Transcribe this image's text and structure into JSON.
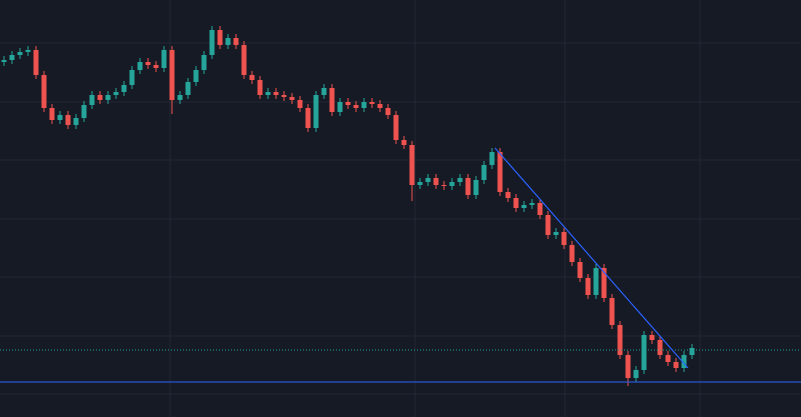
{
  "chart_data": {
    "type": "candlestick",
    "ylim": [
      0,
      417
    ],
    "grid": true,
    "up_color": "#26a69a",
    "down_color": "#ef5350",
    "open": [
      355,
      357,
      362,
      365,
      367,
      342,
      309,
      297,
      302,
      292,
      299,
      312,
      322,
      317,
      322,
      325,
      332,
      347,
      355,
      352,
      349,
      367,
      317,
      322,
      335,
      347,
      362,
      387,
      372,
      379,
      372,
      342,
      337,
      322,
      325,
      322,
      320,
      317,
      309,
      289,
      322,
      329,
      305,
      315,
      312,
      309,
      315,
      313,
      309,
      302,
      277,
      272,
      232,
      235,
      239,
      232,
      231,
      235,
      239,
      222,
      237,
      252,
      265,
      225,
      219,
      209,
      212,
      214,
      202,
      182,
      185,
      172,
      155,
      139,
      122,
      149,
      119,
      92,
      62,
      39,
      47,
      82,
      77,
      62,
      55,
      49,
      62
    ],
    "high": [
      361,
      366,
      369,
      371,
      371,
      346,
      313,
      306,
      306,
      303,
      316,
      326,
      326,
      326,
      329,
      336,
      351,
      359,
      359,
      356,
      371,
      371,
      326,
      339,
      351,
      366,
      391,
      391,
      383,
      383,
      376,
      346,
      341,
      329,
      329,
      326,
      324,
      321,
      313,
      326,
      333,
      333,
      319,
      319,
      316,
      319,
      319,
      317,
      313,
      306,
      281,
      276,
      239,
      243,
      243,
      236,
      239,
      243,
      243,
      241,
      256,
      269,
      269,
      229,
      223,
      216,
      218,
      218,
      206,
      189,
      189,
      176,
      159,
      143,
      153,
      153,
      123,
      96,
      66,
      51,
      86,
      86,
      81,
      66,
      59,
      66,
      73
    ],
    "low": [
      351,
      353,
      358,
      361,
      338,
      305,
      293,
      293,
      288,
      288,
      295,
      308,
      313,
      313,
      318,
      321,
      328,
      343,
      348,
      345,
      345,
      303,
      313,
      318,
      331,
      343,
      358,
      368,
      368,
      368,
      338,
      333,
      318,
      318,
      318,
      316,
      313,
      305,
      285,
      285,
      318,
      301,
      301,
      308,
      305,
      305,
      309,
      305,
      298,
      273,
      268,
      216,
      228,
      231,
      228,
      227,
      227,
      231,
      218,
      218,
      233,
      248,
      221,
      215,
      205,
      205,
      208,
      198,
      178,
      178,
      168,
      151,
      135,
      118,
      118,
      115,
      88,
      58,
      31,
      35,
      43,
      73,
      58,
      51,
      45,
      45,
      58
    ],
    "close": [
      357,
      362,
      365,
      367,
      342,
      309,
      297,
      302,
      292,
      299,
      312,
      322,
      317,
      322,
      325,
      332,
      347,
      355,
      352,
      349,
      367,
      317,
      322,
      335,
      347,
      362,
      387,
      372,
      379,
      372,
      342,
      337,
      322,
      325,
      322,
      320,
      317,
      309,
      289,
      322,
      329,
      305,
      315,
      312,
      309,
      315,
      313,
      309,
      302,
      277,
      272,
      232,
      235,
      239,
      232,
      231,
      235,
      239,
      222,
      237,
      252,
      265,
      225,
      219,
      209,
      212,
      214,
      202,
      182,
      185,
      172,
      155,
      139,
      122,
      149,
      119,
      92,
      62,
      39,
      47,
      82,
      77,
      62,
      55,
      49,
      62,
      69
    ]
  }
}
